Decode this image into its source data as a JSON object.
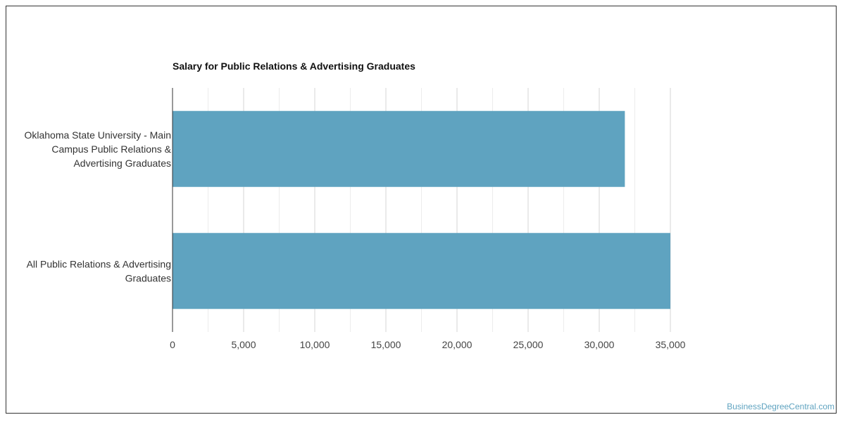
{
  "chart_data": {
    "type": "bar",
    "orientation": "horizontal",
    "title": "Salary for Public Relations & Advertising Graduates",
    "categories": [
      [
        "Oklahoma State University - Main",
        "Campus Public Relations &",
        "Advertising Graduates"
      ],
      [
        "All Public Relations & Advertising",
        "Graduates"
      ]
    ],
    "values": [
      31800,
      35000
    ],
    "xlim": [
      0,
      35000
    ],
    "ticks": [
      0,
      5000,
      10000,
      15000,
      20000,
      25000,
      30000,
      35000
    ],
    "tick_labels": [
      "0",
      "5,000",
      "10,000",
      "15,000",
      "20,000",
      "25,000",
      "30,000",
      "35,000"
    ],
    "grid": true,
    "legend": "none",
    "bar_color": "#5fa3c0"
  },
  "watermark": {
    "text": "BusinessDegreeCentral.com",
    "color": "#5fa3c0"
  }
}
